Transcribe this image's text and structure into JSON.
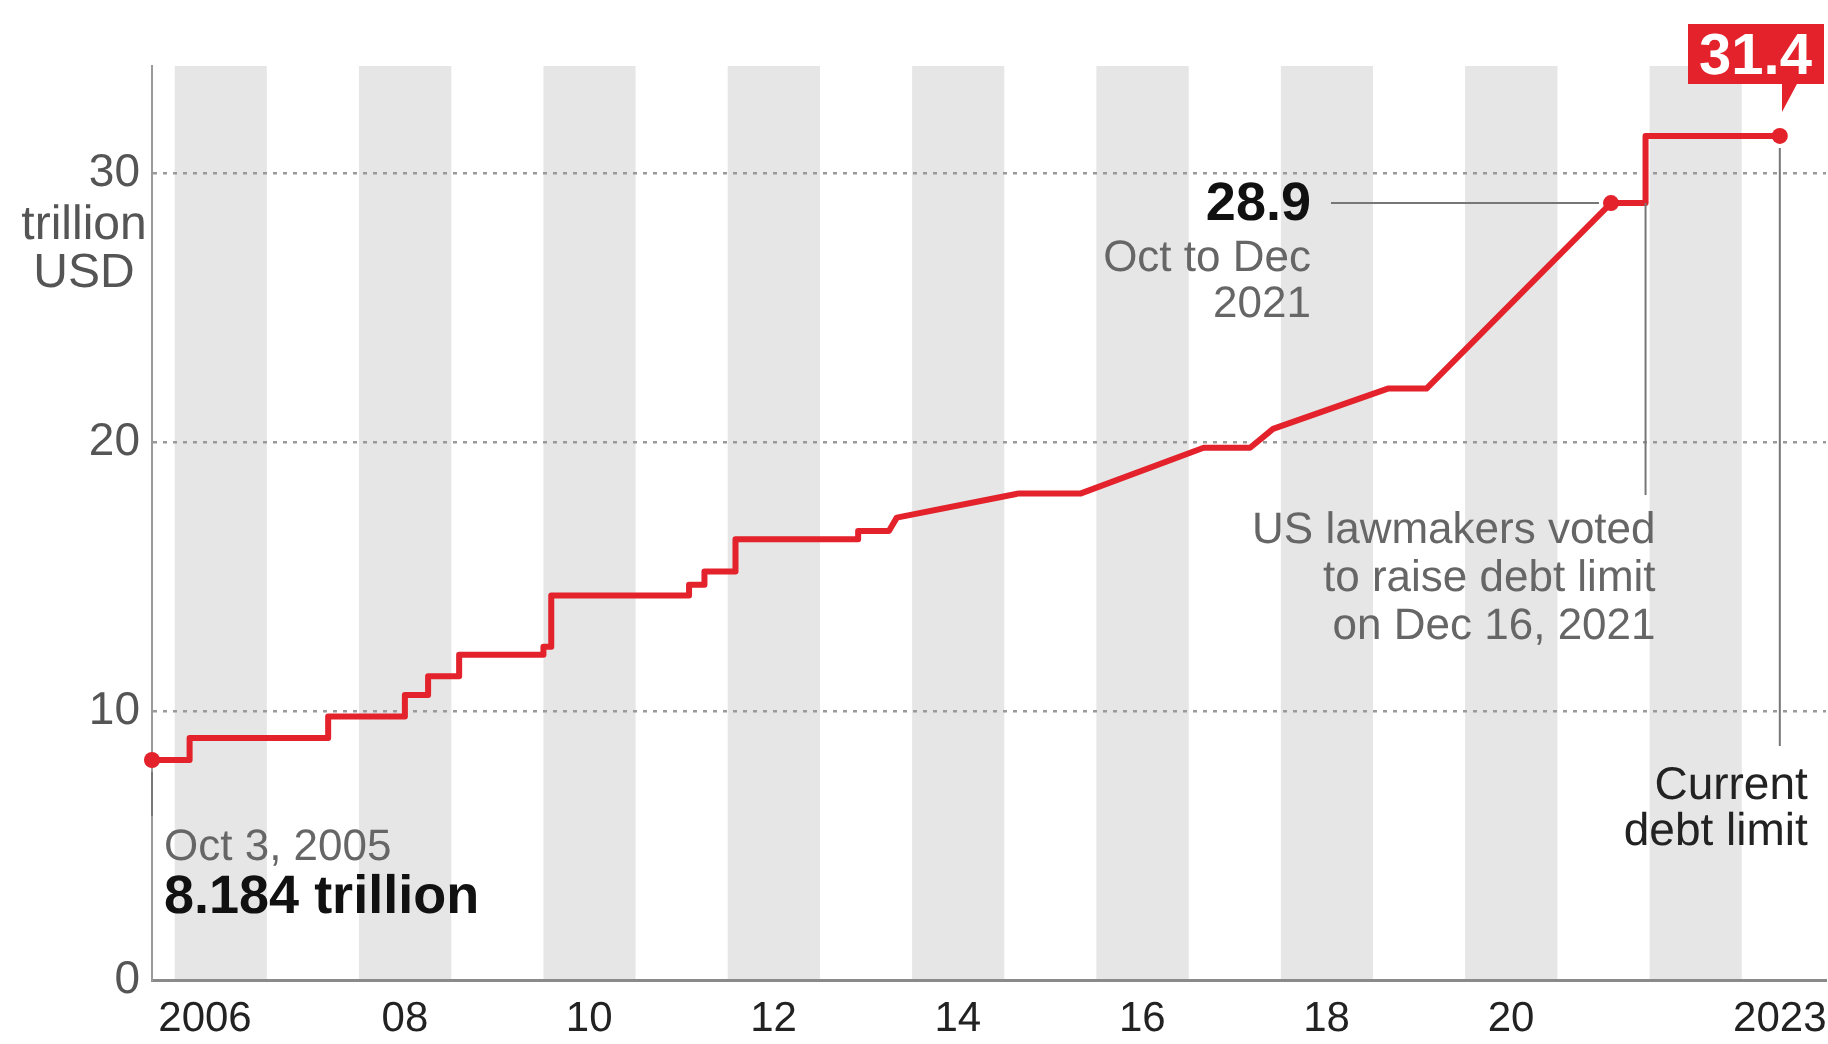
{
  "chart_data": {
    "type": "line",
    "ylabel": "trillion\nUSD",
    "x": [
      "2005-10-03",
      "2006-03",
      "2006-03",
      "2007-09",
      "2007-09",
      "2008-07",
      "2008-07",
      "2008-10",
      "2008-10",
      "2009-02",
      "2009-02",
      "2010-01",
      "2010-01",
      "2010-02",
      "2010-02",
      "2011-08",
      "2011-08",
      "2011-10",
      "2011-10",
      "2012-02",
      "2012-02",
      "2013-06",
      "2013-06",
      "2013-10",
      "2013-11",
      "2015-03",
      "2015-11",
      "2017-03",
      "2017-09",
      "2017-12",
      "2019-03",
      "2019-08",
      "2021-08",
      "2021-12-16",
      "2021-12-16",
      "2023-06"
    ],
    "values": [
      8.184,
      8.184,
      9,
      9,
      9.8,
      9.8,
      10.6,
      10.6,
      11.3,
      11.3,
      12.1,
      12.1,
      12.4,
      12.4,
      14.3,
      14.3,
      14.7,
      14.7,
      15.2,
      15.2,
      16.4,
      16.4,
      16.7,
      16.7,
      17.2,
      18.1,
      18.1,
      19.8,
      19.8,
      20.5,
      22,
      22,
      28.9,
      28.9,
      31.4,
      31.4
    ],
    "color": "#e3222b",
    "line_style": "solid",
    "xlim": [
      "2005-10-03",
      "2023-12"
    ],
    "xticks": [
      {
        "value": "2006-05",
        "label": "2006"
      },
      {
        "value": "2008-07",
        "label": "08"
      },
      {
        "value": "2010-07",
        "label": "10"
      },
      {
        "value": "2012-07",
        "label": "12"
      },
      {
        "value": "2014-07",
        "label": "14"
      },
      {
        "value": "2016-07",
        "label": "16"
      },
      {
        "value": "2018-07",
        "label": "18"
      },
      {
        "value": "2020-07",
        "label": "20"
      },
      {
        "value": "2023-06",
        "label": "2023"
      }
    ],
    "ylim": [
      0,
      34
    ],
    "yticks": [
      0,
      10,
      20,
      30
    ],
    "grid": "y",
    "bands": [
      {
        "axis": "x",
        "from": "2006",
        "to": "2007",
        "color": "#e6e6e6"
      },
      {
        "axis": "x",
        "from": "2008",
        "to": "2009",
        "color": "#e6e6e6"
      },
      {
        "axis": "x",
        "from": "2010",
        "to": "2011",
        "color": "#e6e6e6"
      },
      {
        "axis": "x",
        "from": "2012",
        "to": "2013",
        "color": "#e6e6e6"
      },
      {
        "axis": "x",
        "from": "2014",
        "to": "2015",
        "color": "#e6e6e6"
      },
      {
        "axis": "x",
        "from": "2016",
        "to": "2017",
        "color": "#e6e6e6"
      },
      {
        "axis": "x",
        "from": "2018",
        "to": "2019",
        "color": "#e6e6e6"
      },
      {
        "axis": "x",
        "from": "2020",
        "to": "2021",
        "color": "#e6e6e6"
      },
      {
        "axis": "x",
        "from": "2022",
        "to": "2023",
        "color": "#e6e6e6"
      }
    ],
    "annotations": [
      {
        "text": "Oct 3, 2005",
        "x": "2005-10-03",
        "y": 8.184
      },
      {
        "text": "8.184 trillion",
        "x": "2005-10-03",
        "y": 8.184
      },
      {
        "text": "28.9",
        "x": "2021-08",
        "y": 28.9
      },
      {
        "text": "Oct to Dec\n2021",
        "x": "2021-08",
        "y": 28.9
      },
      {
        "text": "US lawmakers voted\nto raise debt limit\non Dec 16, 2021",
        "x": "2021-12-16",
        "y": 28.9
      },
      {
        "text": "Current\ndebt limit",
        "x": "2023-06",
        "y": 31.4
      },
      {
        "text": "31.4",
        "x": "2023-06",
        "y": 31.4
      }
    ]
  }
}
